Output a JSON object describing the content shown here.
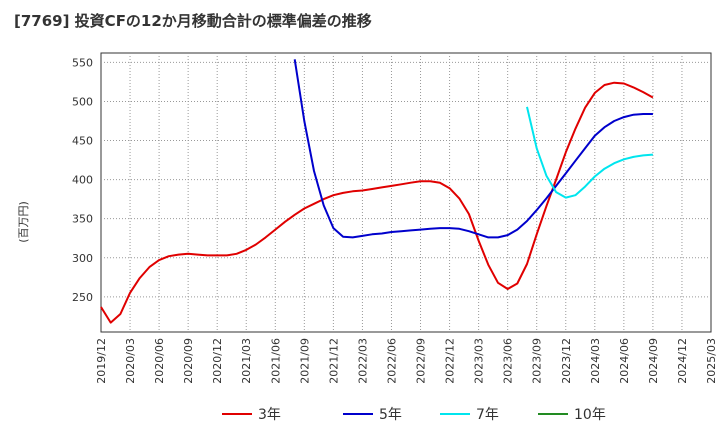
{
  "title": "[7769]  投資CFの12か月移動合計の標準偏差の推移",
  "chart_data": {
    "type": "line",
    "title": "[7769]  投資CFの12か月移動合計の標準偏差の推移",
    "xlabel": "",
    "ylabel": "(百万円)",
    "ylim": [
      205,
      562
    ],
    "yticks": [
      250,
      300,
      350,
      400,
      450,
      500,
      550
    ],
    "xticks": [
      "2019/12",
      "2020/03",
      "2020/06",
      "2020/09",
      "2020/12",
      "2021/03",
      "2021/06",
      "2021/09",
      "2021/12",
      "2022/03",
      "2022/06",
      "2022/09",
      "2022/12",
      "2023/03",
      "2023/06",
      "2023/09",
      "2023/12",
      "2024/03",
      "2024/06",
      "2024/09",
      "2024/12",
      "2025/03"
    ],
    "grid": true,
    "legend_position": "bottom",
    "series": [
      {
        "name": "3年",
        "color": "#e00000",
        "points": [
          [
            "2019/12",
            237
          ],
          [
            "2020/01",
            217
          ],
          [
            "2020/02",
            228
          ],
          [
            "2020/03",
            255
          ],
          [
            "2020/04",
            274
          ],
          [
            "2020/05",
            288
          ],
          [
            "2020/06",
            297
          ],
          [
            "2020/07",
            302
          ],
          [
            "2020/08",
            304
          ],
          [
            "2020/09",
            305
          ],
          [
            "2020/10",
            304
          ],
          [
            "2020/11",
            303
          ],
          [
            "2020/12",
            303
          ],
          [
            "2021/01",
            303
          ],
          [
            "2021/02",
            305
          ],
          [
            "2021/03",
            310
          ],
          [
            "2021/04",
            317
          ],
          [
            "2021/05",
            326
          ],
          [
            "2021/06",
            336
          ],
          [
            "2021/07",
            346
          ],
          [
            "2021/08",
            355
          ],
          [
            "2021/09",
            363
          ],
          [
            "2021/10",
            369
          ],
          [
            "2021/11",
            375
          ],
          [
            "2021/12",
            380
          ],
          [
            "2022/01",
            383
          ],
          [
            "2022/02",
            385
          ],
          [
            "2022/03",
            386
          ],
          [
            "2022/04",
            388
          ],
          [
            "2022/05",
            390
          ],
          [
            "2022/06",
            392
          ],
          [
            "2022/07",
            394
          ],
          [
            "2022/08",
            396
          ],
          [
            "2022/09",
            398
          ],
          [
            "2022/10",
            398
          ],
          [
            "2022/11",
            396
          ],
          [
            "2022/12",
            389
          ],
          [
            "2023/01",
            376
          ],
          [
            "2023/02",
            356
          ],
          [
            "2023/03",
            322
          ],
          [
            "2023/04",
            291
          ],
          [
            "2023/05",
            268
          ],
          [
            "2023/06",
            260
          ],
          [
            "2023/07",
            267
          ],
          [
            "2023/08",
            292
          ],
          [
            "2023/09",
            330
          ],
          [
            "2023/10",
            366
          ],
          [
            "2023/11",
            400
          ],
          [
            "2023/12",
            435
          ],
          [
            "2024/01",
            465
          ],
          [
            "2024/02",
            492
          ],
          [
            "2024/03",
            511
          ],
          [
            "2024/04",
            521
          ],
          [
            "2024/05",
            524
          ],
          [
            "2024/06",
            523
          ],
          [
            "2024/07",
            518
          ],
          [
            "2024/08",
            512
          ],
          [
            "2024/09",
            505
          ]
        ]
      },
      {
        "name": "5年",
        "color": "#0000cc",
        "points": [
          [
            "2021/08",
            554
          ],
          [
            "2021/09",
            475
          ],
          [
            "2021/10",
            411
          ],
          [
            "2021/11",
            367
          ],
          [
            "2021/12",
            338
          ],
          [
            "2022/01",
            327
          ],
          [
            "2022/02",
            326
          ],
          [
            "2022/03",
            328
          ],
          [
            "2022/04",
            330
          ],
          [
            "2022/05",
            331
          ],
          [
            "2022/06",
            333
          ],
          [
            "2022/07",
            334
          ],
          [
            "2022/08",
            335
          ],
          [
            "2022/09",
            336
          ],
          [
            "2022/10",
            337
          ],
          [
            "2022/11",
            338
          ],
          [
            "2022/12",
            338
          ],
          [
            "2023/01",
            337
          ],
          [
            "2023/02",
            334
          ],
          [
            "2023/03",
            330
          ],
          [
            "2023/04",
            326
          ],
          [
            "2023/05",
            326
          ],
          [
            "2023/06",
            329
          ],
          [
            "2023/07",
            336
          ],
          [
            "2023/08",
            347
          ],
          [
            "2023/09",
            361
          ],
          [
            "2023/10",
            376
          ],
          [
            "2023/11",
            392
          ],
          [
            "2023/12",
            408
          ],
          [
            "2024/01",
            424
          ],
          [
            "2024/02",
            440
          ],
          [
            "2024/03",
            456
          ],
          [
            "2024/04",
            467
          ],
          [
            "2024/05",
            475
          ],
          [
            "2024/06",
            480
          ],
          [
            "2024/07",
            483
          ],
          [
            "2024/08",
            484
          ],
          [
            "2024/09",
            484
          ]
        ]
      },
      {
        "name": "7年",
        "color": "#00e5ee",
        "points": [
          [
            "2023/08",
            493
          ],
          [
            "2023/09",
            440
          ],
          [
            "2023/10",
            405
          ],
          [
            "2023/11",
            384
          ],
          [
            "2023/12",
            377
          ],
          [
            "2024/01",
            380
          ],
          [
            "2024/02",
            391
          ],
          [
            "2024/03",
            404
          ],
          [
            "2024/04",
            414
          ],
          [
            "2024/05",
            421
          ],
          [
            "2024/06",
            426
          ],
          [
            "2024/07",
            429
          ],
          [
            "2024/08",
            431
          ],
          [
            "2024/09",
            432
          ]
        ]
      },
      {
        "name": "10年",
        "color": "#228b22",
        "points": []
      }
    ]
  }
}
